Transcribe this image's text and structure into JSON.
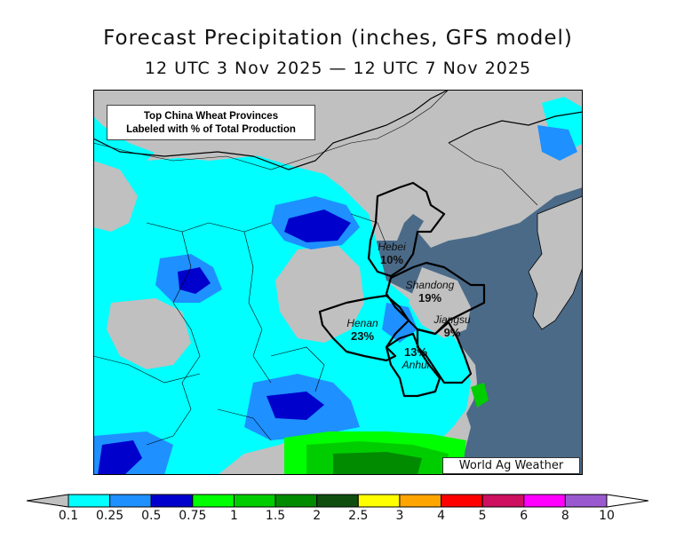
{
  "title": "Forecast Precipitation (inches, GFS model)",
  "subtitle": "12 UTC 3 Nov 2025 — 12 UTC 7 Nov 2025",
  "map_note_line1": "Top China Wheat Provinces",
  "map_note_line2": "Labeled with % of Total Production",
  "credit": "World Ag Weather",
  "provinces": [
    {
      "name": "Hebei",
      "share": "10%"
    },
    {
      "name": "Shandong",
      "share": "19%"
    },
    {
      "name": "Henan",
      "share": "23%"
    },
    {
      "name": "Jiangsu",
      "share": "9%"
    },
    {
      "name": "Anhui",
      "share": "13%"
    }
  ],
  "colorbar": {
    "ticks": [
      "0.1",
      "0.25",
      "0.5",
      "0.75",
      "1",
      "1.5",
      "2",
      "2.5",
      "3",
      "4",
      "5",
      "6",
      "8",
      "10"
    ],
    "colors": [
      "#00ffff",
      "#1e90ff",
      "#0000cd",
      "#00ff00",
      "#00cd00",
      "#008b00",
      "#104e10",
      "#ffff00",
      "#ffa500",
      "#ff0000",
      "#cd1060",
      "#ff00ff",
      "#9b59d0"
    ],
    "under_color": "#c0c0c0",
    "over_color": "#ffffff"
  },
  "colors": {
    "land": "#c0c0c0",
    "ocean": "#4a6a88",
    "border": "#000000"
  }
}
